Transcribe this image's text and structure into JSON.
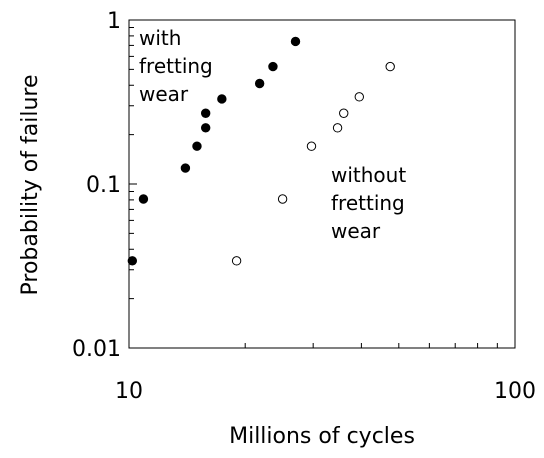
{
  "chart_data": {
    "type": "scatter",
    "xlabel": "Millions of cycles",
    "ylabel": "Probability of failure",
    "xscale": "log",
    "yscale": "log",
    "xlim": [
      10,
      100
    ],
    "ylim": [
      0.01,
      1
    ],
    "x_tick_labels": [
      "10",
      "100"
    ],
    "y_tick_labels": [
      "0.01",
      "0.1",
      "1"
    ],
    "grid": false,
    "series": [
      {
        "marker": "filled-circle",
        "color": "#000000",
        "x": [
          10.2,
          10.9,
          14.0,
          15.0,
          15.8,
          15.8,
          17.4,
          21.8,
          23.6,
          27.0
        ],
        "y": [
          0.034,
          0.081,
          0.125,
          0.17,
          0.22,
          0.27,
          0.33,
          0.41,
          0.52,
          0.74
        ]
      },
      {
        "marker": "open-circle",
        "color": "#000000",
        "x": [
          19.0,
          25.0,
          29.7,
          34.7,
          36.0,
          39.5,
          47.5
        ],
        "y": [
          0.034,
          0.081,
          0.17,
          0.22,
          0.27,
          0.34,
          0.52
        ]
      }
    ],
    "annotations": [
      {
        "lines": [
          "with",
          "fretting",
          "wear"
        ]
      },
      {
        "lines": [
          "without",
          "fretting",
          "wear"
        ]
      }
    ]
  }
}
